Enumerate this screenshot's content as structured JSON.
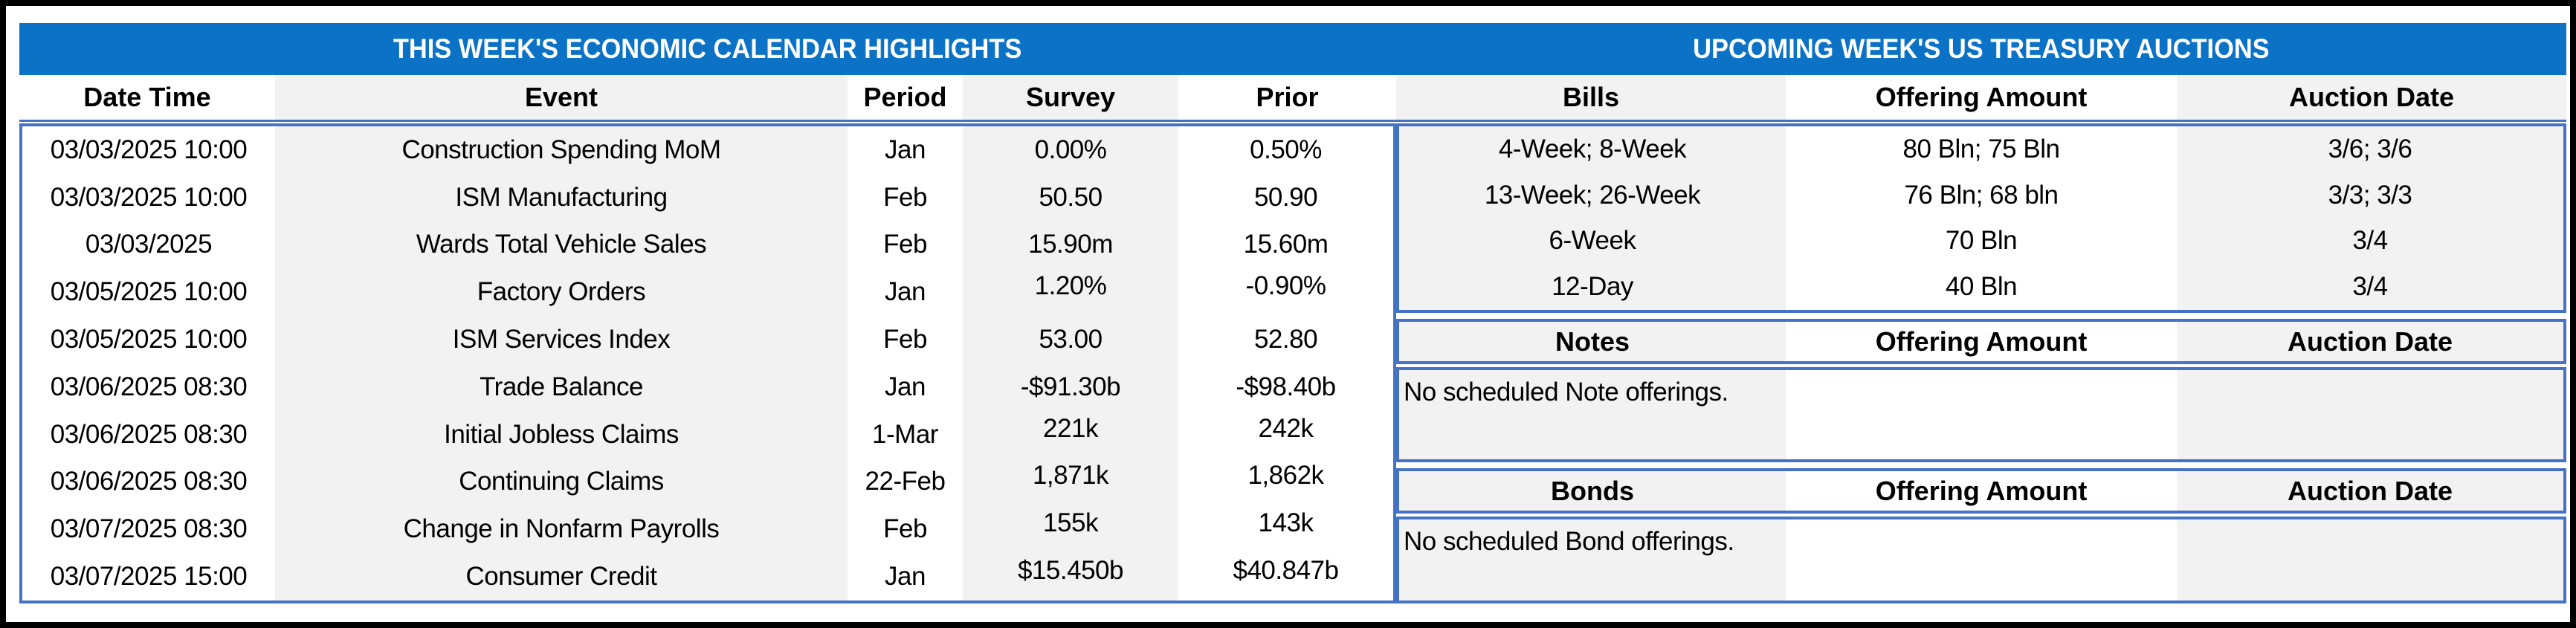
{
  "titles": {
    "left": "THIS WEEK'S ECONOMIC CALENDAR HIGHLIGHTS",
    "right": "UPCOMING WEEK'S US TREASURY AUCTIONS"
  },
  "calendar": {
    "headers": {
      "datetime": "Date Time",
      "event": "Event",
      "period": "Period",
      "survey": "Survey",
      "prior": "Prior"
    },
    "rows": [
      {
        "datetime": "03/03/2025 10:00",
        "event": "Construction Spending MoM",
        "period": "Jan",
        "survey": "0.00%",
        "prior": "0.50%"
      },
      {
        "datetime": "03/03/2025 10:00",
        "event": "ISM Manufacturing",
        "period": "Feb",
        "survey": "50.50",
        "prior": "50.90"
      },
      {
        "datetime": "03/03/2025",
        "event": "Wards Total Vehicle Sales",
        "period": "Feb",
        "survey": "15.90m",
        "prior": "15.60m"
      },
      {
        "datetime": "03/05/2025 10:00",
        "event": "Factory Orders",
        "period": "Jan",
        "survey": "1.20%",
        "prior": "-0.90%"
      },
      {
        "datetime": "03/05/2025 10:00",
        "event": "ISM Services Index",
        "period": "Feb",
        "survey": "53.00",
        "prior": "52.80"
      },
      {
        "datetime": "03/06/2025 08:30",
        "event": "Trade Balance",
        "period": "Jan",
        "survey": "-$91.30b",
        "prior": "-$98.40b"
      },
      {
        "datetime": "03/06/2025 08:30",
        "event": "Initial Jobless Claims",
        "period": "1-Mar",
        "survey": "221k",
        "prior": "242k"
      },
      {
        "datetime": "03/06/2025 08:30",
        "event": "Continuing Claims",
        "period": "22-Feb",
        "survey": "1,871k",
        "prior": "1,862k"
      },
      {
        "datetime": "03/07/2025 08:30",
        "event": "Change in Nonfarm Payrolls",
        "period": "Feb",
        "survey": "155k",
        "prior": "143k"
      },
      {
        "datetime": "03/07/2025 15:00",
        "event": "Consumer Credit",
        "period": "Jan",
        "survey": "$15.450b",
        "prior": "$40.847b"
      }
    ]
  },
  "auctions": {
    "bills": {
      "label": "Bills",
      "amount_header": "Offering Amount",
      "date_header": "Auction Date",
      "rows": [
        {
          "security": "4-Week; 8-Week",
          "amount": "80 Bln; 75 Bln",
          "date": "3/6; 3/6"
        },
        {
          "security": "13-Week; 26-Week",
          "amount": "76 Bln; 68 bln",
          "date": "3/3; 3/3"
        },
        {
          "security": "6-Week",
          "amount": "70 Bln",
          "date": "3/4"
        },
        {
          "security": "12-Day",
          "amount": "40 Bln",
          "date": "3/4"
        }
      ]
    },
    "notes": {
      "label": "Notes",
      "amount_header": "Offering Amount",
      "date_header": "Auction Date",
      "message": "No scheduled Note offerings."
    },
    "bonds": {
      "label": "Bonds",
      "amount_header": "Offering Amount",
      "date_header": "Auction Date",
      "message": "No scheduled Bond offerings."
    }
  },
  "colors": {
    "title_bar_blue": "#0B72C6",
    "table_border_blue": "#4472C4",
    "shaded_column_gray": "#F2F2F2",
    "frame_black": "#000000"
  }
}
